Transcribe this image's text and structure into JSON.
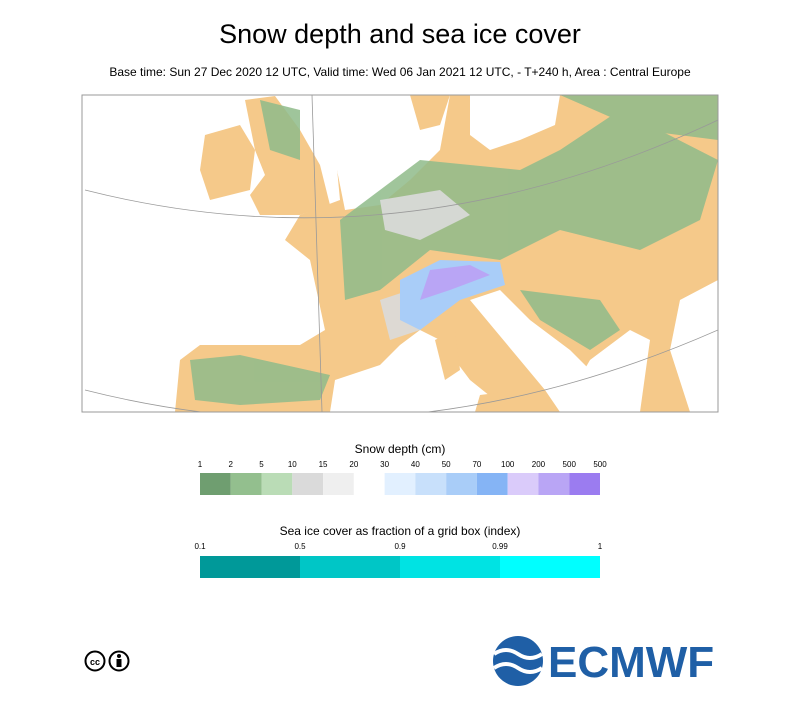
{
  "header": {
    "title": "Snow depth and sea ice cover",
    "subtitle": "Base time: Sun 27 Dec 2020 12 UTC, Valid time: Wed 06 Jan 2021 12 UTC, - T+240 h, Area : Central Europe"
  },
  "snow_legend": {
    "title": "Snow depth (cm)",
    "ticks": [
      "1",
      "2",
      "5",
      "10",
      "15",
      "20",
      "30",
      "40",
      "50",
      "70",
      "100",
      "200",
      "500",
      "500"
    ],
    "colors": [
      "#6f9e70",
      "#93bf8e",
      "#badcb6",
      "#dadada",
      "#efefef",
      "#ffffff",
      "#e2f0ff",
      "#c8e0fb",
      "#a9cdf8",
      "#85b4f5",
      "#dacbfa",
      "#b9a5f5",
      "#9b7cf0"
    ]
  },
  "ice_legend": {
    "title": "Sea ice cover as fraction of a grid box (index)",
    "ticks": [
      "0.1",
      "0.5",
      "0.9",
      "0.99",
      "1"
    ],
    "colors": [
      "#009999",
      "#00c6c6",
      "#00e3e3",
      "#00ffff"
    ]
  },
  "logo": {
    "text": "ECMWF"
  }
}
